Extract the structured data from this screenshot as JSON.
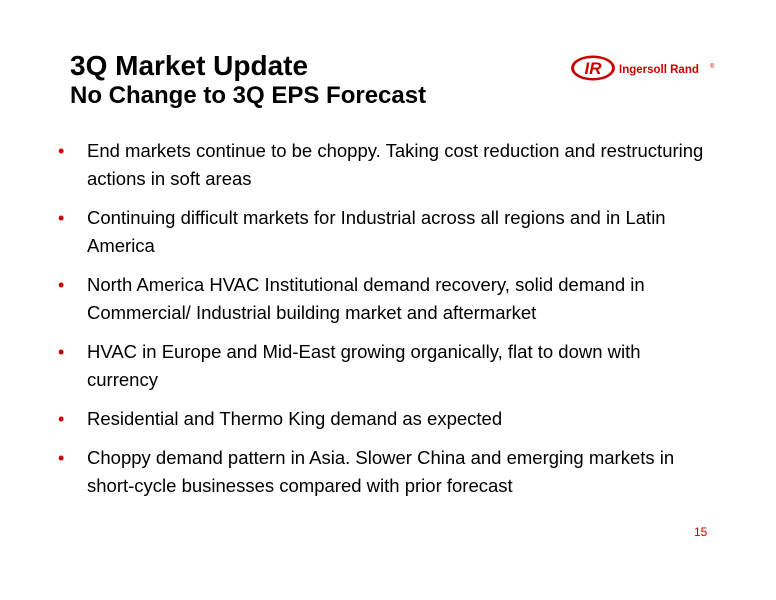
{
  "slide": {
    "title": "3Q Market Update",
    "subtitle": "No Change to 3Q EPS Forecast",
    "logo": {
      "mark": "IR",
      "text": "Ingersoll Rand",
      "registered": "®",
      "color": "#cc0000"
    },
    "bullet_marker": "•",
    "bullets": [
      "End markets continue to be choppy. Taking cost reduction and restructuring actions in soft areas",
      "Continuing difficult markets for Industrial across all regions and in Latin America",
      "North America HVAC Institutional demand recovery, solid demand in Commercial/ Industrial building market and aftermarket",
      "HVAC in Europe and Mid-East growing organically, flat to down with currency",
      "Residential and Thermo King demand as expected",
      "Choppy demand pattern in Asia. Slower China and emerging markets in short-cycle businesses compared with prior forecast"
    ],
    "page_number": "15"
  }
}
